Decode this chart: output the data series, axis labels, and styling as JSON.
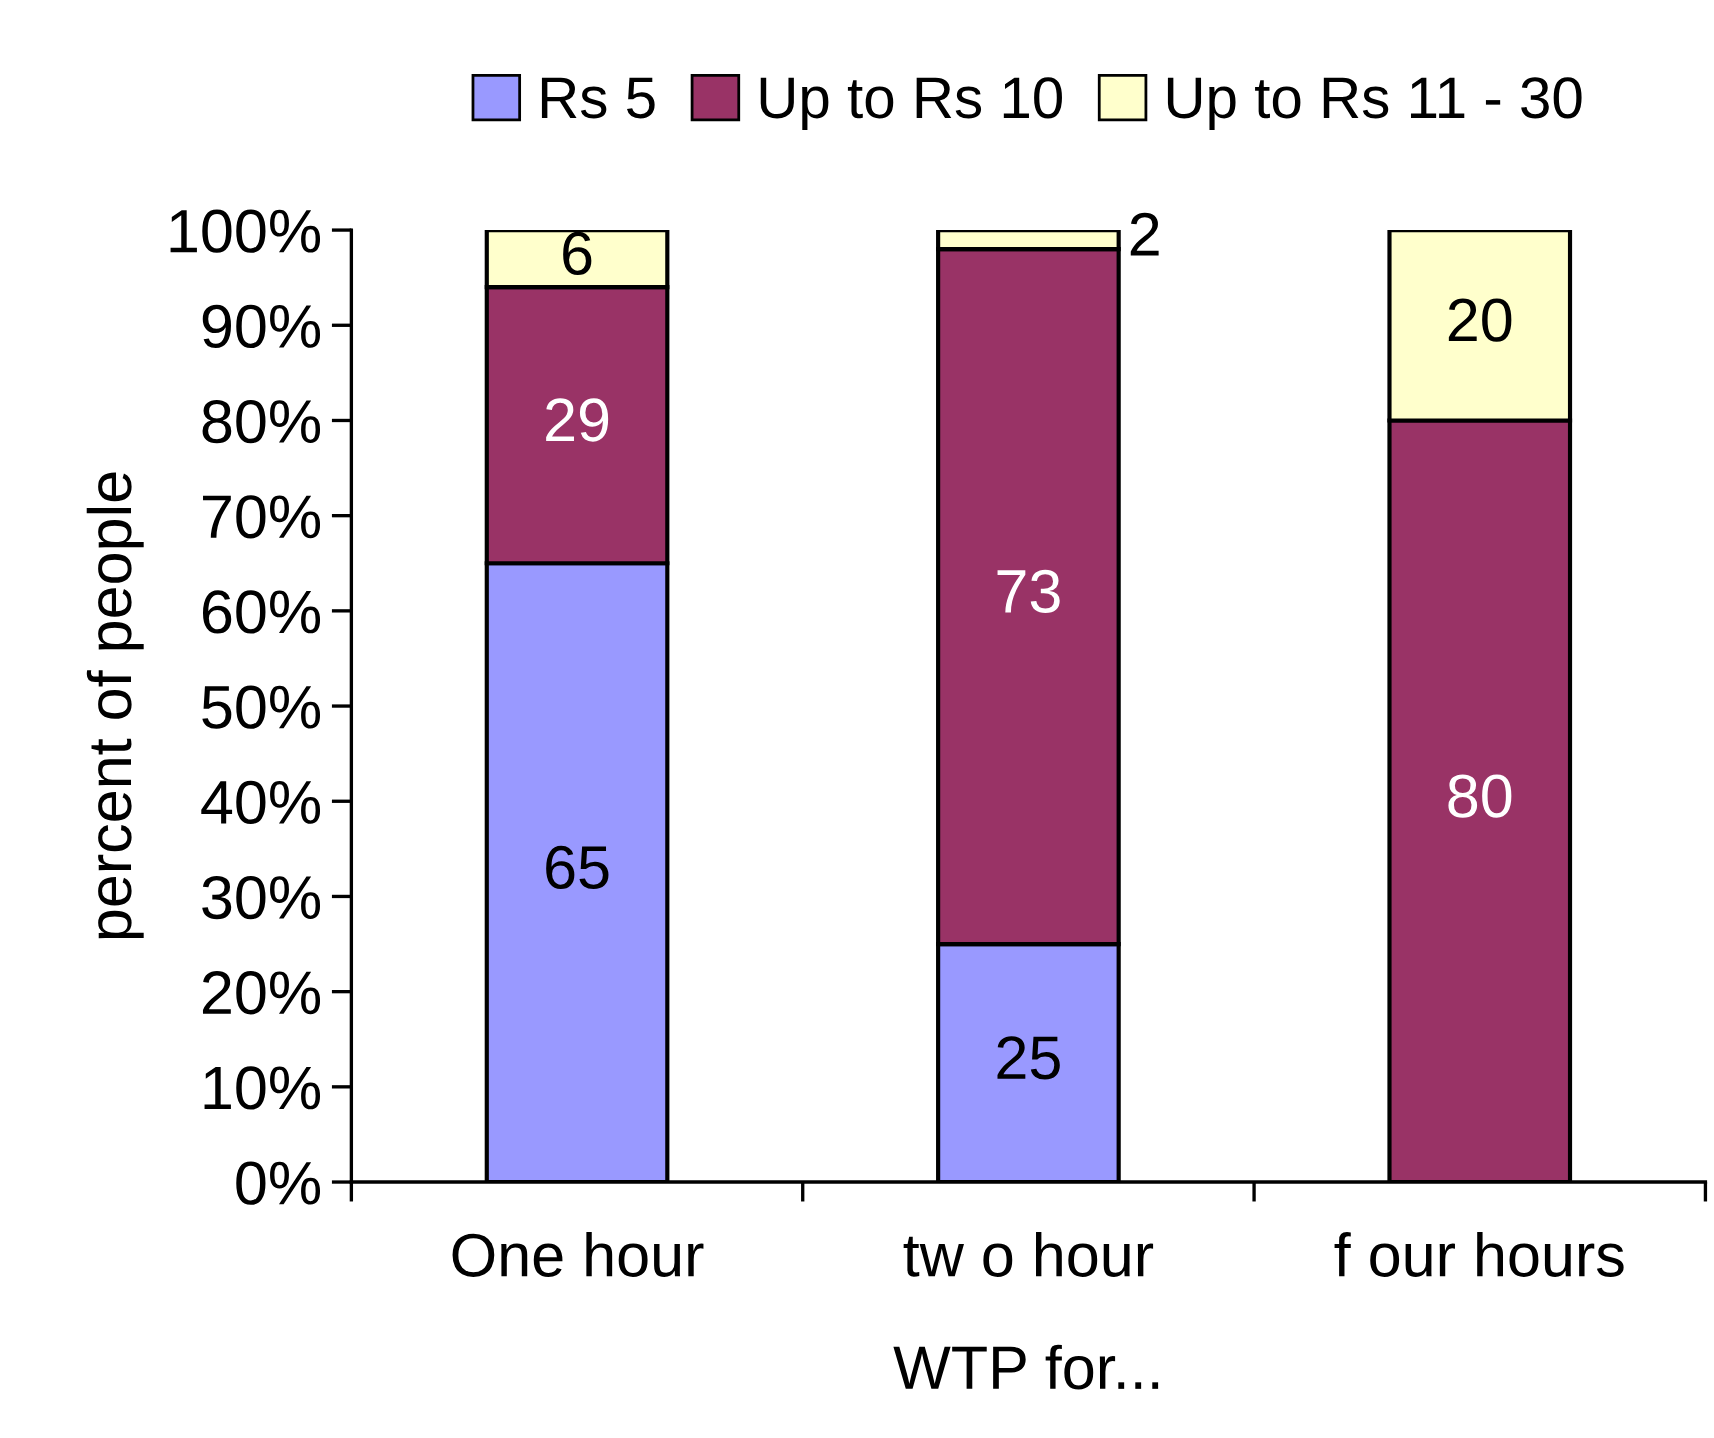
{
  "chart_data": {
    "type": "bar",
    "stacked": true,
    "xlabel": "WTP for...",
    "ylabel": "percent of people",
    "categories": [
      "One hour",
      "tw o hour",
      "f our hours"
    ],
    "series": [
      {
        "name": "Rs 5",
        "color": "#9999ff",
        "values": [
          65,
          25,
          0
        ],
        "value_labels": [
          "65",
          "25",
          null
        ]
      },
      {
        "name": "Up to Rs 10",
        "color": "#993366",
        "values": [
          29,
          73,
          80
        ],
        "value_labels": [
          "29",
          "73",
          "80"
        ]
      },
      {
        "name": "Up to Rs 11 - 30",
        "color": "#ffffcc",
        "values": [
          6,
          2,
          20
        ],
        "value_labels": [
          "6",
          "2",
          "20"
        ]
      }
    ],
    "ylim": [
      0,
      100
    ],
    "yticks": [
      {
        "value": 0,
        "label": "0%"
      },
      {
        "value": 10,
        "label": "10%"
      },
      {
        "value": 20,
        "label": "20%"
      },
      {
        "value": 30,
        "label": "30%"
      },
      {
        "value": 40,
        "label": "40%"
      },
      {
        "value": 50,
        "label": "50%"
      },
      {
        "value": 60,
        "label": "60%"
      },
      {
        "value": 70,
        "label": "70%"
      },
      {
        "value": 80,
        "label": "80%"
      },
      {
        "value": 90,
        "label": "90%"
      },
      {
        "value": 100,
        "label": "100%"
      }
    ],
    "grid": false,
    "legend": "top"
  }
}
